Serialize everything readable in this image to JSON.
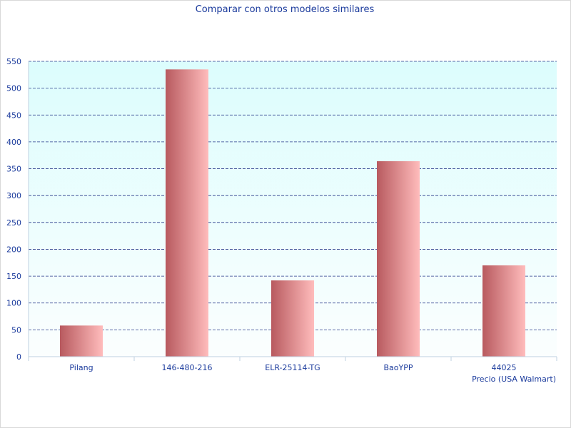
{
  "chart_data": {
    "type": "bar",
    "title": "Comparar con otros modelos similares",
    "xlabel": "Precio (USA Walmart)",
    "ylabel": "",
    "categories": [
      "Pilang",
      "146-480-216",
      "ELR-25114-TG",
      "BaoYPP",
      "44025"
    ],
    "values": [
      58,
      535,
      142,
      364,
      170
    ],
    "ylim": [
      0,
      550
    ],
    "yticks": [
      0,
      50,
      100,
      150,
      200,
      250,
      300,
      350,
      400,
      450,
      500,
      550
    ],
    "grid": true,
    "legend": "none",
    "colors": {
      "bar_dark": "#b85a5f",
      "bar_light": "#ffbcbc",
      "plot_top": "#dcfdfd",
      "plot_bottom": "#fbfefe",
      "grid": "#27398a",
      "text": "#1a3a9c",
      "axis": "#bfd0e0"
    }
  }
}
